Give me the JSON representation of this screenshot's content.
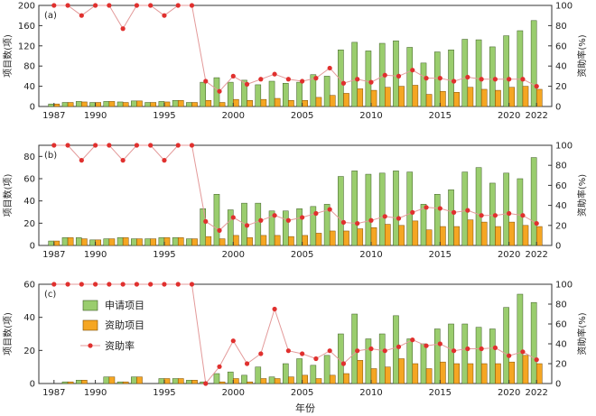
{
  "figure": {
    "xlabel": "年份",
    "legend": {
      "applied": "申请项目",
      "funded": "资助项目",
      "rate": "资助率"
    },
    "colors": {
      "applied": "#9ACD6E",
      "funded": "#F5A623",
      "rate": "#E0302E",
      "rate_line": "#E39A9A",
      "axis": "#333333"
    }
  },
  "chart_data": [
    {
      "type": "bar",
      "panel_label": "(a)",
      "years": [
        1987,
        1988,
        1989,
        1990,
        1991,
        1992,
        1993,
        1994,
        1995,
        1996,
        1997,
        1998,
        1999,
        2000,
        2001,
        2002,
        2003,
        2004,
        2005,
        2006,
        2007,
        2008,
        2009,
        2010,
        2011,
        2012,
        2013,
        2014,
        2015,
        2016,
        2017,
        2018,
        2019,
        2020,
        2021,
        2022
      ],
      "xticks": [
        1987,
        1990,
        1995,
        2000,
        2005,
        2010,
        2015,
        2020,
        2022
      ],
      "ylabel_left": "项目数(项)",
      "ylabel_right": "资助率(%)",
      "ylim_left": [
        0,
        200
      ],
      "yticks_left": [
        0,
        40,
        80,
        120,
        160,
        200
      ],
      "ylim_right": [
        0,
        100
      ],
      "yticks_right": [
        0,
        20,
        40,
        60,
        80,
        100
      ],
      "series": [
        {
          "name": "申请项目",
          "values": [
            5,
            8,
            10,
            8,
            10,
            9,
            11,
            8,
            10,
            12,
            8,
            48,
            57,
            48,
            52,
            43,
            50,
            46,
            48,
            63,
            60,
            112,
            127,
            110,
            125,
            130,
            117,
            86,
            108,
            112,
            133,
            132,
            118,
            140,
            150,
            170
          ]
        },
        {
          "name": "资助项目",
          "values": [
            5,
            8,
            9,
            8,
            10,
            8,
            11,
            8,
            9,
            12,
            8,
            12,
            8,
            14,
            12,
            14,
            16,
            12,
            12,
            18,
            22,
            26,
            35,
            32,
            38,
            40,
            42,
            24,
            30,
            28,
            38,
            34,
            32,
            38,
            40,
            34
          ]
        },
        {
          "name": "资助率",
          "values": [
            100,
            100,
            90,
            100,
            100,
            77,
            100,
            100,
            90,
            100,
            100,
            25,
            15,
            30,
            22,
            27,
            32,
            27,
            25,
            28,
            38,
            23,
            27,
            24,
            31,
            30,
            36,
            28,
            28,
            25,
            29,
            27,
            27,
            27,
            27,
            20
          ]
        }
      ]
    },
    {
      "type": "bar",
      "panel_label": "(b)",
      "years": [
        1987,
        1988,
        1989,
        1990,
        1991,
        1992,
        1993,
        1994,
        1995,
        1996,
        1997,
        1998,
        1999,
        2000,
        2001,
        2002,
        2003,
        2004,
        2005,
        2006,
        2007,
        2008,
        2009,
        2010,
        2011,
        2012,
        2013,
        2014,
        2015,
        2016,
        2017,
        2018,
        2019,
        2020,
        2021,
        2022
      ],
      "xticks": [
        1987,
        1990,
        1995,
        2000,
        2005,
        2010,
        2015,
        2020,
        2022
      ],
      "ylabel_left": "项目数(项)",
      "ylabel_right": "资助率(%)",
      "ylim_left": [
        0,
        90
      ],
      "yticks_left": [
        0,
        20,
        40,
        60,
        80
      ],
      "ylim_right": [
        0,
        100
      ],
      "yticks_right": [
        0,
        20,
        40,
        60,
        80,
        100
      ],
      "series": [
        {
          "name": "申请项目",
          "values": [
            4,
            7,
            7,
            5,
            6,
            7,
            6,
            6,
            7,
            7,
            6,
            33,
            46,
            32,
            38,
            38,
            31,
            31,
            33,
            35,
            37,
            62,
            67,
            64,
            65,
            67,
            66,
            37,
            46,
            50,
            66,
            70,
            56,
            65,
            60,
            79
          ]
        },
        {
          "name": "资助项目",
          "values": [
            4,
            7,
            6,
            5,
            6,
            7,
            6,
            6,
            7,
            7,
            6,
            8,
            6,
            9,
            7,
            9,
            9,
            8,
            9,
            11,
            13,
            13,
            15,
            16,
            19,
            18,
            22,
            14,
            17,
            17,
            23,
            21,
            17,
            21,
            18,
            17
          ]
        },
        {
          "name": "资助率",
          "values": [
            100,
            100,
            85,
            100,
            100,
            85,
            100,
            100,
            85,
            100,
            100,
            24,
            15,
            28,
            20,
            25,
            30,
            25,
            28,
            32,
            36,
            23,
            22,
            25,
            29,
            27,
            33,
            38,
            37,
            33,
            35,
            30,
            30,
            32,
            30,
            22
          ]
        }
      ]
    },
    {
      "type": "bar",
      "panel_label": "(c)",
      "years": [
        1987,
        1988,
        1989,
        1990,
        1991,
        1992,
        1993,
        1994,
        1995,
        1996,
        1997,
        1998,
        1999,
        2000,
        2001,
        2002,
        2003,
        2004,
        2005,
        2006,
        2007,
        2008,
        2009,
        2010,
        2011,
        2012,
        2013,
        2014,
        2015,
        2016,
        2017,
        2018,
        2019,
        2020,
        2021,
        2022
      ],
      "xticks": [
        1987,
        1990,
        1995,
        2000,
        2005,
        2010,
        2015,
        2020,
        2022
      ],
      "ylabel_left": "项目数(项)",
      "ylabel_right": "资助率(%)",
      "ylim_left": [
        0,
        60
      ],
      "yticks_left": [
        0,
        20,
        40,
        60
      ],
      "ylim_right": [
        0,
        100
      ],
      "yticks_right": [
        0,
        20,
        40,
        60,
        80,
        100
      ],
      "series": [
        {
          "name": "申请项目",
          "values": [
            0,
            1,
            2,
            0,
            4,
            1,
            4,
            0,
            3,
            3,
            2,
            1,
            6,
            7,
            5,
            10,
            4,
            12,
            15,
            11,
            17,
            30,
            42,
            27,
            30,
            41,
            27,
            24,
            33,
            36,
            36,
            34,
            33,
            46,
            54,
            49
          ]
        },
        {
          "name": "资助项目",
          "values": [
            0,
            1,
            2,
            0,
            4,
            1,
            4,
            0,
            3,
            3,
            2,
            0,
            1,
            3,
            1,
            3,
            3,
            4,
            5,
            3,
            5,
            6,
            14,
            9,
            10,
            15,
            12,
            9,
            13,
            12,
            12,
            12,
            12,
            13,
            17,
            12
          ]
        },
        {
          "name": "资助率",
          "values": [
            100,
            100,
            100,
            100,
            100,
            100,
            100,
            100,
            100,
            100,
            100,
            0,
            17,
            43,
            20,
            30,
            75,
            33,
            30,
            25,
            33,
            20,
            33,
            35,
            33,
            37,
            44,
            38,
            40,
            33,
            35,
            35,
            36,
            28,
            32,
            24
          ]
        }
      ]
    }
  ]
}
